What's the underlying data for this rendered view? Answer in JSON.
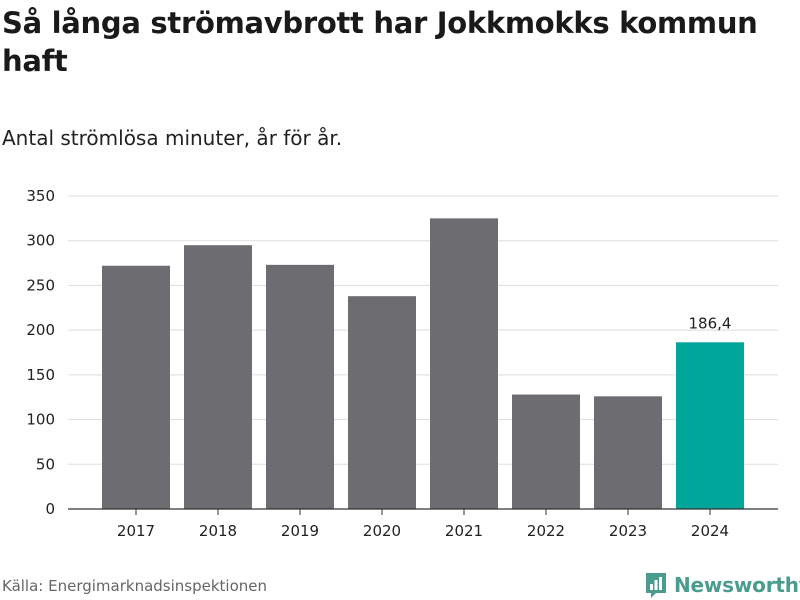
{
  "chart_data": {
    "type": "bar",
    "title": "Så långa strömavbrott har Jokkmokks kommun haft",
    "subtitle": "Antal strömlösa minuter, år för år.",
    "categories": [
      "2017",
      "2018",
      "2019",
      "2020",
      "2021",
      "2022",
      "2023",
      "2024"
    ],
    "values": [
      272,
      295,
      273,
      238,
      325,
      128,
      126,
      186.4
    ],
    "highlight_index": 7,
    "highlight_label": "186,4",
    "ylim": [
      0,
      350
    ],
    "yticks": [
      0,
      50,
      100,
      150,
      200,
      250,
      300,
      350
    ],
    "xlabel": "",
    "ylabel": "",
    "grid": true,
    "colors": {
      "bar": "#6d6c71",
      "highlight": "#00a59a",
      "grid": "#dddddd",
      "axis": "#333333"
    }
  },
  "source": "Källa: Energimarknadsinspektionen",
  "brand": {
    "name": "Newsworthy",
    "color": "#4a9c8e",
    "icon": "bar-chart-flag-icon"
  }
}
